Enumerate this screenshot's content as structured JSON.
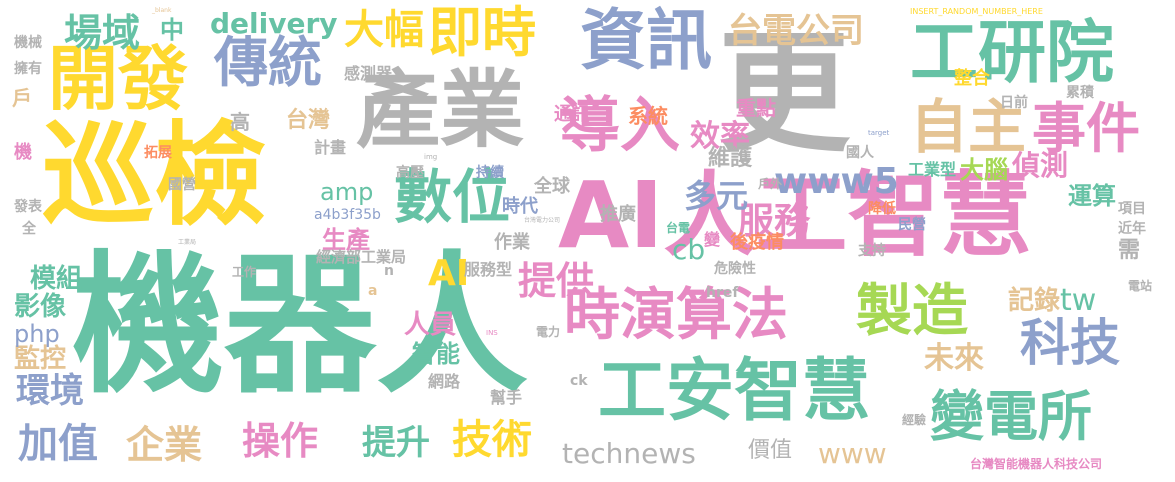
{
  "colors": {
    "green": "#66c2a5",
    "orange": "#fc8d62",
    "blue": "#8da0cb",
    "pink": "#e78ac3",
    "lime": "#a6d854",
    "yellow": "#ffd92f",
    "tan": "#e5c494",
    "gray": "#b3b3b3"
  },
  "words": [
    {
      "text": "機器人",
      "color": "green"
    },
    {
      "text": "巡檢",
      "color": "yellow"
    },
    {
      "text": "AI人工智慧",
      "color": "pink"
    },
    {
      "text": "產業",
      "color": "gray"
    },
    {
      "text": "更",
      "color": "gray"
    },
    {
      "text": "資訊",
      "color": "blue"
    },
    {
      "text": "工研院",
      "color": "green"
    },
    {
      "text": "開發",
      "color": "yellow"
    },
    {
      "text": "傳統",
      "color": "blue"
    },
    {
      "text": "即時",
      "color": "yellow"
    },
    {
      "text": "導入",
      "color": "pink"
    },
    {
      "text": "自主",
      "color": "tan"
    },
    {
      "text": "事件",
      "color": "pink"
    },
    {
      "text": "數位",
      "color": "green"
    },
    {
      "text": "時演算法",
      "color": "pink"
    },
    {
      "text": "製造",
      "color": "lime"
    },
    {
      "text": "工安智慧",
      "color": "green"
    },
    {
      "text": "變電所",
      "color": "green"
    },
    {
      "text": "科技",
      "color": "blue"
    },
    {
      "text": "台電公司",
      "color": "tan"
    },
    {
      "text": "場域",
      "color": "green"
    },
    {
      "text": "大幅",
      "color": "yellow"
    },
    {
      "text": "delivery",
      "color": "green"
    },
    {
      "text": "www5",
      "color": "blue"
    },
    {
      "text": "服務",
      "color": "pink"
    },
    {
      "text": "效率",
      "color": "pink"
    },
    {
      "text": "多元",
      "color": "blue"
    },
    {
      "text": "AI",
      "color": "yellow"
    },
    {
      "text": "提供",
      "color": "pink"
    },
    {
      "text": "加值",
      "color": "blue"
    },
    {
      "text": "企業",
      "color": "tan"
    },
    {
      "text": "操作",
      "color": "pink"
    },
    {
      "text": "提升",
      "color": "green"
    },
    {
      "text": "技術",
      "color": "yellow"
    },
    {
      "text": "technews",
      "color": "gray"
    },
    {
      "text": "www",
      "color": "tan"
    },
    {
      "text": "價值",
      "color": "gray"
    },
    {
      "text": "未來",
      "color": "tan"
    },
    {
      "text": "tw",
      "color": "green"
    },
    {
      "text": "記錄",
      "color": "tan"
    },
    {
      "text": "人員",
      "color": "pink"
    },
    {
      "text": "智能",
      "color": "green"
    },
    {
      "text": "環境",
      "color": "blue"
    },
    {
      "text": "監控",
      "color": "tan"
    },
    {
      "text": "php",
      "color": "blue"
    },
    {
      "text": "影像",
      "color": "green"
    },
    {
      "text": "模組",
      "color": "green"
    },
    {
      "text": "生產",
      "color": "pink"
    },
    {
      "text": "amp",
      "color": "green"
    },
    {
      "text": "cb",
      "color": "green"
    },
    {
      "text": "大腦",
      "color": "lime"
    },
    {
      "text": "偵測",
      "color": "pink"
    },
    {
      "text": "運算",
      "color": "green"
    },
    {
      "text": "工業型",
      "color": "green"
    },
    {
      "text": "維護",
      "color": "gray"
    },
    {
      "text": "重點",
      "color": "pink"
    },
    {
      "text": "系統",
      "color": "orange"
    },
    {
      "text": "通訊",
      "color": "pink"
    },
    {
      "text": "台灣",
      "color": "tan"
    },
    {
      "text": "感測器",
      "color": "gray"
    },
    {
      "text": "高",
      "color": "gray"
    },
    {
      "text": "計畫",
      "color": "gray"
    },
    {
      "text": "全球",
      "color": "gray"
    },
    {
      "text": "推廣",
      "color": "gray"
    },
    {
      "text": "時代",
      "color": "blue"
    },
    {
      "text": "作業",
      "color": "gray"
    },
    {
      "text": "服務型",
      "color": "gray"
    },
    {
      "text": "後疫情",
      "color": "orange"
    },
    {
      "text": "危險性",
      "color": "gray"
    },
    {
      "text": "經濟部工業局",
      "color": "gray"
    },
    {
      "text": "a4b3f35b",
      "color": "blue"
    },
    {
      "text": "台灣智能機器人科技公司",
      "color": "pink"
    },
    {
      "text": "網路",
      "color": "gray"
    },
    {
      "text": "幫手",
      "color": "gray"
    },
    {
      "text": "日前",
      "color": "gray"
    },
    {
      "text": "整合",
      "color": "yellow"
    },
    {
      "text": "累積",
      "color": "gray"
    },
    {
      "text": "國人",
      "color": "gray"
    },
    {
      "text": "持續",
      "color": "blue"
    },
    {
      "text": "高壓",
      "color": "gray"
    },
    {
      "text": "國營",
      "color": "gray"
    },
    {
      "text": "發表",
      "color": "gray"
    },
    {
      "text": "中",
      "color": "green"
    },
    {
      "text": "機械",
      "color": "gray"
    },
    {
      "text": "擁有",
      "color": "gray"
    },
    {
      "text": "戶",
      "color": "tan"
    },
    {
      "text": "拓展",
      "color": "orange"
    },
    {
      "text": "機",
      "color": "pink"
    },
    {
      "text": "全",
      "color": "gray"
    },
    {
      "text": "工作",
      "color": "gray"
    },
    {
      "text": "需",
      "color": "gray"
    },
    {
      "text": "近年",
      "color": "gray"
    },
    {
      "text": "項目",
      "color": "gray"
    },
    {
      "text": "電站",
      "color": "gray"
    },
    {
      "text": "降低",
      "color": "orange"
    },
    {
      "text": "民營",
      "color": "blue"
    },
    {
      "text": "支持",
      "color": "gray"
    },
    {
      "text": "戶外",
      "color": "gray"
    },
    {
      "text": "href",
      "color": "gray"
    },
    {
      "text": "變",
      "color": "pink"
    },
    {
      "text": "經驗",
      "color": "gray"
    },
    {
      "text": "台電",
      "color": "green"
    },
    {
      "text": "電力",
      "color": "gray"
    },
    {
      "text": "ck",
      "color": "gray"
    },
    {
      "text": "a",
      "color": "tan"
    },
    {
      "text": "n",
      "color": "gray"
    },
    {
      "text": "_blank",
      "color": "tan"
    },
    {
      "text": "INSERT_RANDOM_NUMBER_HERE",
      "color": "yellow"
    },
    {
      "text": "img",
      "color": "gray"
    },
    {
      "text": "target",
      "color": "blue"
    },
    {
      "text": "INS",
      "color": "pink"
    },
    {
      "text": "台灣電力公司",
      "color": "gray"
    },
    {
      "text": "工業局",
      "color": "gray"
    }
  ]
}
